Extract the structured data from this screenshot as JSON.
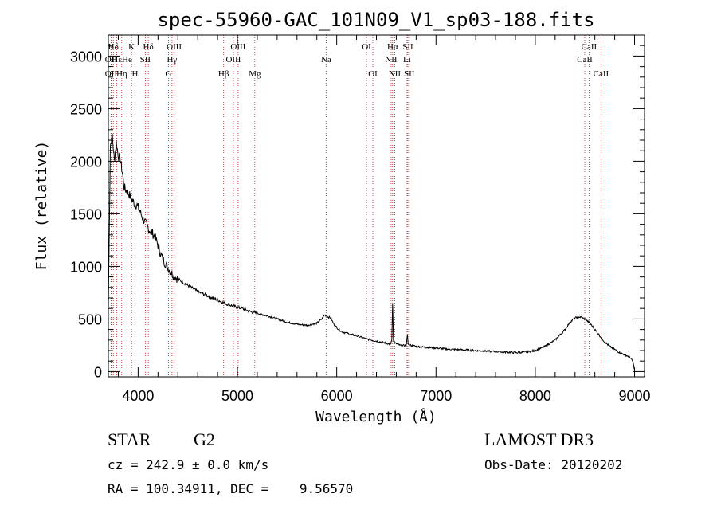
{
  "chart_data": {
    "type": "line",
    "title": "spec-55960-GAC_101N09_V1_sp03-188.fits",
    "xlabel": "Wavelength (Å)",
    "ylabel": "Flux (relative)",
    "xlim": [
      3700,
      9100
    ],
    "ylim": [
      -50,
      3200
    ],
    "xticks": [
      4000,
      5000,
      6000,
      7000,
      8000,
      9000
    ],
    "xtick_labels": [
      "4000",
      "5000",
      "6000",
      "7000",
      "8000",
      "9000"
    ],
    "yticks": [
      0,
      500,
      1000,
      1500,
      2000,
      2500,
      3000
    ],
    "ytick_labels": [
      "0",
      "500",
      "1000",
      "1500",
      "2000",
      "2500",
      "3000"
    ],
    "series": [
      {
        "name": "spectrum",
        "x": [
          3700,
          3720,
          3740,
          3760,
          3780,
          3800,
          3820,
          3840,
          3860,
          3880,
          3900,
          3930,
          3960,
          3990,
          4020,
          4050,
          4080,
          4110,
          4140,
          4170,
          4200,
          4230,
          4260,
          4290,
          4320,
          4350,
          4400,
          4450,
          4500,
          4550,
          4600,
          4650,
          4700,
          4750,
          4800,
          4850,
          4900,
          4950,
          5000,
          5050,
          5100,
          5150,
          5200,
          5300,
          5400,
          5500,
          5600,
          5700,
          5800,
          5850,
          5880,
          5910,
          5940,
          5960,
          5980,
          6000,
          6020,
          6050,
          6100,
          6200,
          6300,
          6400,
          6500,
          6540,
          6555,
          6563,
          6572,
          6590,
          6650,
          6700,
          6712,
          6720,
          6740,
          6800,
          6900,
          7000,
          7100,
          7200,
          7300,
          7400,
          7500,
          7600,
          7700,
          7800,
          7900,
          8000,
          8100,
          8200,
          8300,
          8350,
          8400,
          8450,
          8500,
          8550,
          8600,
          8650,
          8700,
          8750,
          8800,
          8850,
          8900,
          8950,
          8980,
          9000
        ],
        "values": [
          600,
          2150,
          2250,
          2000,
          2180,
          2050,
          2020,
          1900,
          1750,
          1720,
          1700,
          1650,
          1600,
          1580,
          1520,
          1450,
          1400,
          1350,
          1320,
          1280,
          1200,
          1110,
          1050,
          1000,
          960,
          920,
          880,
          850,
          820,
          790,
          760,
          740,
          720,
          700,
          680,
          660,
          640,
          625,
          610,
          600,
          580,
          565,
          555,
          530,
          500,
          470,
          450,
          440,
          460,
          500,
          540,
          520,
          510,
          470,
          440,
          420,
          400,
          380,
          365,
          340,
          310,
          290,
          270,
          260,
          300,
          640,
          290,
          270,
          245,
          250,
          350,
          260,
          250,
          240,
          230,
          225,
          215,
          210,
          205,
          200,
          195,
          190,
          185,
          180,
          185,
          200,
          240,
          300,
          400,
          470,
          510,
          520,
          500,
          460,
          400,
          340,
          280,
          240,
          210,
          180,
          160,
          140,
          100,
          20
        ]
      }
    ],
    "line_markers": [
      {
        "label": "Hδ",
        "x": 3750,
        "row": 1
      },
      {
        "label": "Hε",
        "x": 3785,
        "row": 2
      },
      {
        "label": "Hη",
        "x": 3835,
        "row": 3
      },
      {
        "label": "OII",
        "x": 3727,
        "row": 2
      },
      {
        "label": "OII",
        "x": 3727,
        "row": 3
      },
      {
        "label": "K",
        "x": 3934,
        "row": 1
      },
      {
        "label": "He",
        "x": 3888,
        "row": 2
      },
      {
        "label": "H",
        "x": 3969,
        "row": 3
      },
      {
        "label": "SII",
        "x": 4072,
        "row": 2
      },
      {
        "label": "Hδ",
        "x": 4102,
        "row": 1
      },
      {
        "label": "OIII",
        "x": 4363,
        "row": 1
      },
      {
        "label": "Hγ",
        "x": 4341,
        "row": 2
      },
      {
        "label": "G",
        "x": 4305,
        "row": 3
      },
      {
        "label": "Hβ",
        "x": 4861,
        "row": 3
      },
      {
        "label": "OIII",
        "x": 4959,
        "row": 2
      },
      {
        "label": "OIII",
        "x": 5007,
        "row": 1
      },
      {
        "label": "Mg",
        "x": 5175,
        "row": 3
      },
      {
        "label": "Na",
        "x": 5893,
        "row": 2
      },
      {
        "label": "OI",
        "x": 6300,
        "row": 1
      },
      {
        "label": "OI",
        "x": 6364,
        "row": 3
      },
      {
        "label": "Hα",
        "x": 6563,
        "row": 1
      },
      {
        "label": "NII",
        "x": 6548,
        "row": 2
      },
      {
        "label": "NII",
        "x": 6584,
        "row": 3
      },
      {
        "label": "SII",
        "x": 6717,
        "row": 1
      },
      {
        "label": "Li",
        "x": 6708,
        "row": 2
      },
      {
        "label": "SII",
        "x": 6731,
        "row": 3
      },
      {
        "label": "CaII",
        "x": 8542,
        "row": 1
      },
      {
        "label": "CaII",
        "x": 8498,
        "row": 2
      },
      {
        "label": "CaII",
        "x": 8662,
        "row": 3
      }
    ]
  },
  "info": {
    "object_class": "STAR",
    "subclass": "G2",
    "survey": "LAMOST DR3",
    "redshift_text": "cz = 242.9 ± 0.0 km/s",
    "obs_date": "Obs-Date: 20120202",
    "coords": "RA = 100.34911, DEC =    9.56570"
  },
  "colors": {
    "marker_line": "#b22222",
    "spectrum": "#000000",
    "axis": "#000000"
  }
}
